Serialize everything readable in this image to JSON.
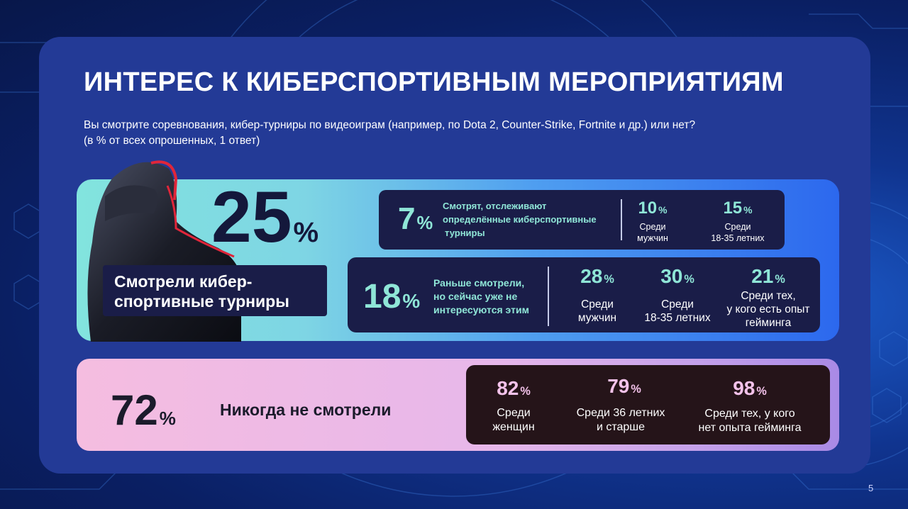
{
  "slide": {
    "title": "ИНТЕРЕС К КИБЕРСПОРТИВНЫМ МЕРОПРИЯТИЯМ",
    "question_line1": "Вы смотрите соревнования, кибер-турниры по видеоиграм (например, по Dota 2, Counter-Strike, Fortnite и др.) или нет?",
    "question_line2": "(в % от всех опрошенных, 1 ответ)",
    "page_number": "5"
  },
  "colors": {
    "page_bg": "#0a1f63",
    "panel_bg": "#233a96",
    "dark_box": "#1a1d48",
    "mint_text": "#8fe6d7",
    "pink_text": "#f3c2ea",
    "dark_text": "#1b1b2b"
  },
  "watched": {
    "total": "25",
    "total_unit": "%",
    "label_line1": "Смотрели кибер-",
    "label_line2": "спортивные турниры",
    "current": {
      "value": "7",
      "unit": "%",
      "desc_line1": "Смотрят, отслеживают",
      "desc_line2": "определённые киберспортивные",
      "desc_line3": "турниры",
      "breakdown": [
        {
          "value": "10",
          "unit": "%",
          "line1": "Среди",
          "line2": "мужчин"
        },
        {
          "value": "15",
          "unit": "%",
          "line1": "Среди",
          "line2": "18-35 летних"
        }
      ]
    },
    "former": {
      "value": "18",
      "unit": "%",
      "desc_line1": "Раньше смотрели,",
      "desc_line2": "но сейчас уже не",
      "desc_line3": "интересуются этим",
      "breakdown": [
        {
          "value": "28",
          "unit": "%",
          "line1": "Среди",
          "line2": "мужчин"
        },
        {
          "value": "30",
          "unit": "%",
          "line1": "Среди",
          "line2": "18-35 летних"
        },
        {
          "value": "21",
          "unit": "%",
          "line1": "Среди тех,",
          "line2": "у кого есть опыт",
          "line3": "гейминга"
        }
      ]
    }
  },
  "never": {
    "value": "72",
    "unit": "%",
    "label": "Никогда не смотрели",
    "breakdown": [
      {
        "value": "82",
        "unit": "%",
        "line1": "Среди",
        "line2": "женщин"
      },
      {
        "value": "79",
        "unit": "%",
        "line1": "Среди 36 летних",
        "line2": "и старше"
      },
      {
        "value": "98",
        "unit": "%",
        "line1": "Среди тех, у кого",
        "line2": "нет опыта гейминга"
      }
    ]
  }
}
